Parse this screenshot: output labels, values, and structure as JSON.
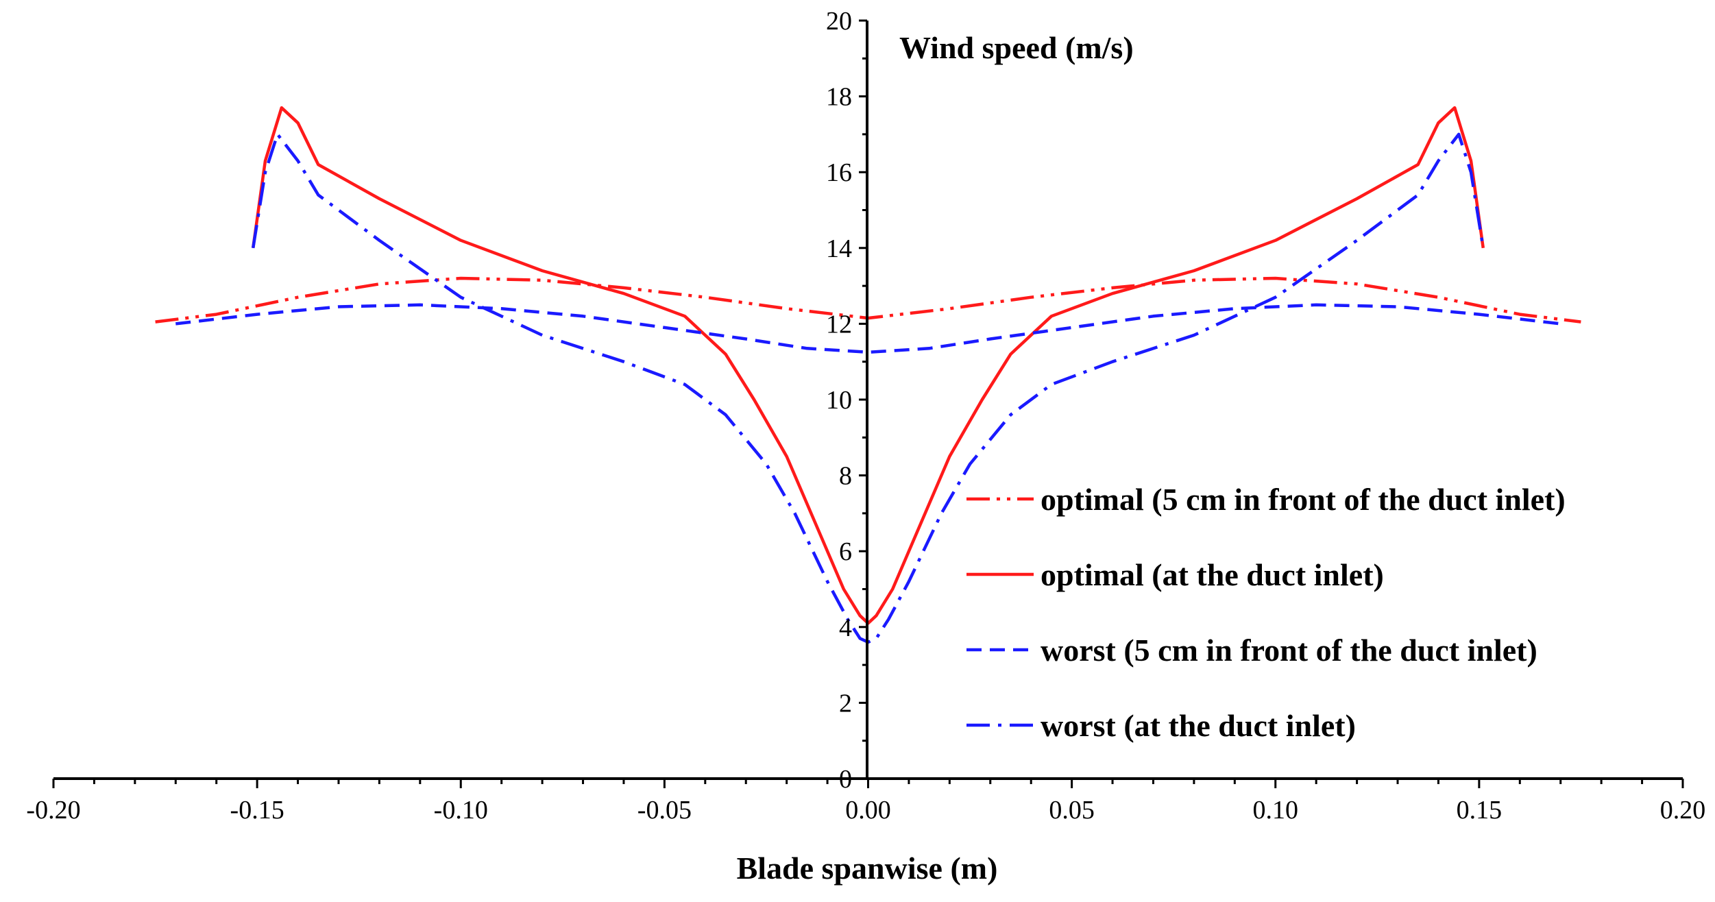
{
  "chart_data": {
    "type": "line",
    "title": "",
    "xlabel": "Blade spanwise (m)",
    "ylabel": "Wind speed (m/s)",
    "xlim": [
      -0.2,
      0.2
    ],
    "ylim": [
      0,
      20
    ],
    "x_ticks": [
      "-0.20",
      "-0.15",
      "-0.10",
      "-0.05",
      "0.00",
      "0.05",
      "0.10",
      "0.15",
      "0.20"
    ],
    "y_ticks": [
      "0",
      "2",
      "4",
      "6",
      "8",
      "10",
      "12",
      "14",
      "16",
      "18",
      "20"
    ],
    "legend_position": "center-right",
    "series": [
      {
        "name": "optimal (5 cm in front of the duct inlet)",
        "color": "#ff1a1a",
        "dash": "dash-dot-dot",
        "points": [
          [
            -0.175,
            12.05
          ],
          [
            -0.16,
            12.25
          ],
          [
            -0.14,
            12.7
          ],
          [
            -0.12,
            13.05
          ],
          [
            -0.1,
            13.2
          ],
          [
            -0.08,
            13.15
          ],
          [
            -0.06,
            12.95
          ],
          [
            -0.04,
            12.7
          ],
          [
            -0.02,
            12.4
          ],
          [
            0.0,
            12.15
          ],
          [
            0.02,
            12.4
          ],
          [
            0.04,
            12.7
          ],
          [
            0.06,
            12.95
          ],
          [
            0.08,
            13.15
          ],
          [
            0.1,
            13.2
          ],
          [
            0.12,
            13.05
          ],
          [
            0.14,
            12.7
          ],
          [
            0.16,
            12.25
          ],
          [
            0.175,
            12.05
          ]
        ]
      },
      {
        "name": "optimal (at the duct inlet)",
        "color": "#ff1a1a",
        "dash": "solid",
        "points": [
          [
            -0.151,
            14.0
          ],
          [
            -0.148,
            16.3
          ],
          [
            -0.144,
            17.7
          ],
          [
            -0.14,
            17.3
          ],
          [
            -0.135,
            16.2
          ],
          [
            -0.12,
            15.3
          ],
          [
            -0.1,
            14.2
          ],
          [
            -0.08,
            13.4
          ],
          [
            -0.06,
            12.8
          ],
          [
            -0.045,
            12.2
          ],
          [
            -0.035,
            11.2
          ],
          [
            -0.028,
            10.0
          ],
          [
            -0.02,
            8.5
          ],
          [
            -0.012,
            6.5
          ],
          [
            -0.006,
            5.0
          ],
          [
            -0.002,
            4.3
          ],
          [
            0.0,
            4.1
          ],
          [
            0.002,
            4.3
          ],
          [
            0.006,
            5.0
          ],
          [
            0.012,
            6.5
          ],
          [
            0.02,
            8.5
          ],
          [
            0.028,
            10.0
          ],
          [
            0.035,
            11.2
          ],
          [
            0.045,
            12.2
          ],
          [
            0.06,
            12.8
          ],
          [
            0.08,
            13.4
          ],
          [
            0.1,
            14.2
          ],
          [
            0.12,
            15.3
          ],
          [
            0.135,
            16.2
          ],
          [
            0.14,
            17.3
          ],
          [
            0.144,
            17.7
          ],
          [
            0.148,
            16.3
          ],
          [
            0.151,
            14.0
          ]
        ]
      },
      {
        "name": "worst (5 cm in front of the duct inlet)",
        "color": "#1a1aff",
        "dash": "dashed",
        "points": [
          [
            -0.17,
            12.0
          ],
          [
            -0.15,
            12.25
          ],
          [
            -0.13,
            12.45
          ],
          [
            -0.11,
            12.5
          ],
          [
            -0.09,
            12.4
          ],
          [
            -0.07,
            12.2
          ],
          [
            -0.05,
            11.9
          ],
          [
            -0.03,
            11.6
          ],
          [
            -0.015,
            11.35
          ],
          [
            0.0,
            11.25
          ],
          [
            0.015,
            11.35
          ],
          [
            0.03,
            11.6
          ],
          [
            0.05,
            11.9
          ],
          [
            0.07,
            12.2
          ],
          [
            0.09,
            12.4
          ],
          [
            0.11,
            12.5
          ],
          [
            0.13,
            12.45
          ],
          [
            0.15,
            12.25
          ],
          [
            0.17,
            12.0
          ]
        ]
      },
      {
        "name": "worst (at the duct inlet)",
        "color": "#1a1aff",
        "dash": "dash-dot",
        "points": [
          [
            -0.151,
            14.0
          ],
          [
            -0.148,
            16.0
          ],
          [
            -0.145,
            17.0
          ],
          [
            -0.14,
            16.3
          ],
          [
            -0.135,
            15.4
          ],
          [
            -0.12,
            14.2
          ],
          [
            -0.1,
            12.7
          ],
          [
            -0.08,
            11.7
          ],
          [
            -0.06,
            11.0
          ],
          [
            -0.045,
            10.4
          ],
          [
            -0.035,
            9.6
          ],
          [
            -0.025,
            8.3
          ],
          [
            -0.018,
            7.0
          ],
          [
            -0.01,
            5.2
          ],
          [
            -0.005,
            4.2
          ],
          [
            -0.002,
            3.7
          ],
          [
            0.0,
            3.6
          ],
          [
            0.002,
            3.7
          ],
          [
            0.005,
            4.2
          ],
          [
            0.01,
            5.2
          ],
          [
            0.018,
            7.0
          ],
          [
            0.025,
            8.3
          ],
          [
            0.035,
            9.6
          ],
          [
            0.045,
            10.4
          ],
          [
            0.06,
            11.0
          ],
          [
            0.08,
            11.7
          ],
          [
            0.1,
            12.7
          ],
          [
            0.12,
            14.2
          ],
          [
            0.135,
            15.4
          ],
          [
            0.14,
            16.3
          ],
          [
            0.145,
            17.0
          ],
          [
            0.148,
            16.0
          ],
          [
            0.151,
            14.0
          ]
        ]
      }
    ]
  }
}
